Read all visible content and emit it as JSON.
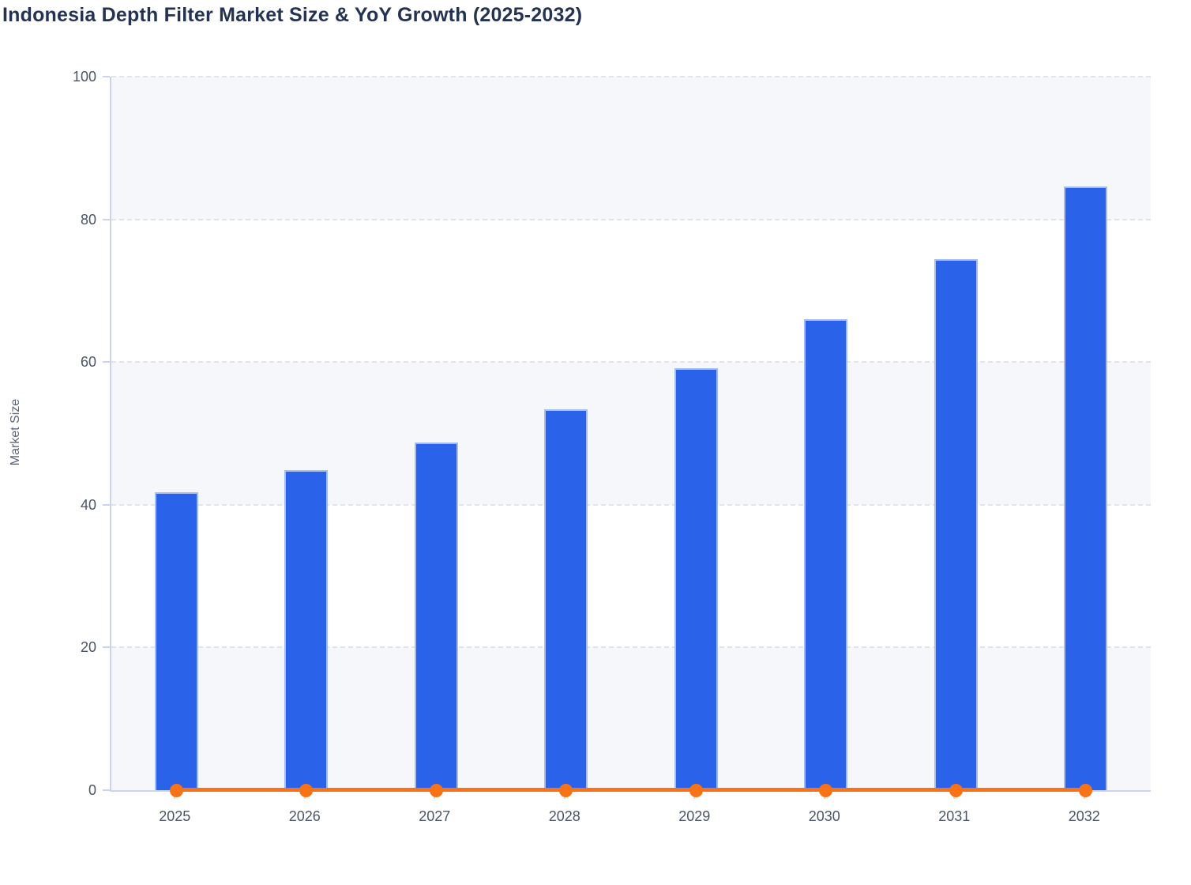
{
  "page": {
    "title": "Indonesia Depth Filter Market Size & YoY Growth (2025-2032)"
  },
  "chart_data": {
    "type": "bar",
    "title": "Indonesia Depth Filter Market Size & YoY Growth (2025-2032)",
    "xlabel": "",
    "ylabel": "Market Size",
    "categories": [
      "2025",
      "2026",
      "2027",
      "2028",
      "2029",
      "2030",
      "2031",
      "2032"
    ],
    "series": [
      {
        "name": "Market Size",
        "type": "bar",
        "values": [
          41.7,
          44.8,
          48.7,
          53.4,
          59.1,
          66.0,
          74.4,
          84.6
        ],
        "color": "#2a63ea",
        "border_color": "#a3bcf4"
      },
      {
        "name": "YoY Growth",
        "type": "line",
        "values": [
          0,
          0,
          0,
          0,
          0,
          0,
          0,
          0
        ],
        "color": "#f97316",
        "marker": "circle"
      }
    ],
    "ylim": [
      0,
      100
    ],
    "yticks": [
      0,
      20,
      40,
      60,
      80,
      100
    ],
    "grid": "horizontal-dashed",
    "background_bands": {
      "shaded_ranges": [
        [
          0,
          20
        ],
        [
          40,
          60
        ],
        [
          80,
          100
        ]
      ],
      "color": "#f6f7fa"
    },
    "legend_position": "none",
    "colors": {
      "title_text": "#243253",
      "axis_tick_text": "#4a5568",
      "axis_line": "#ccd3ee",
      "gridline": "#e2e4ea"
    }
  }
}
